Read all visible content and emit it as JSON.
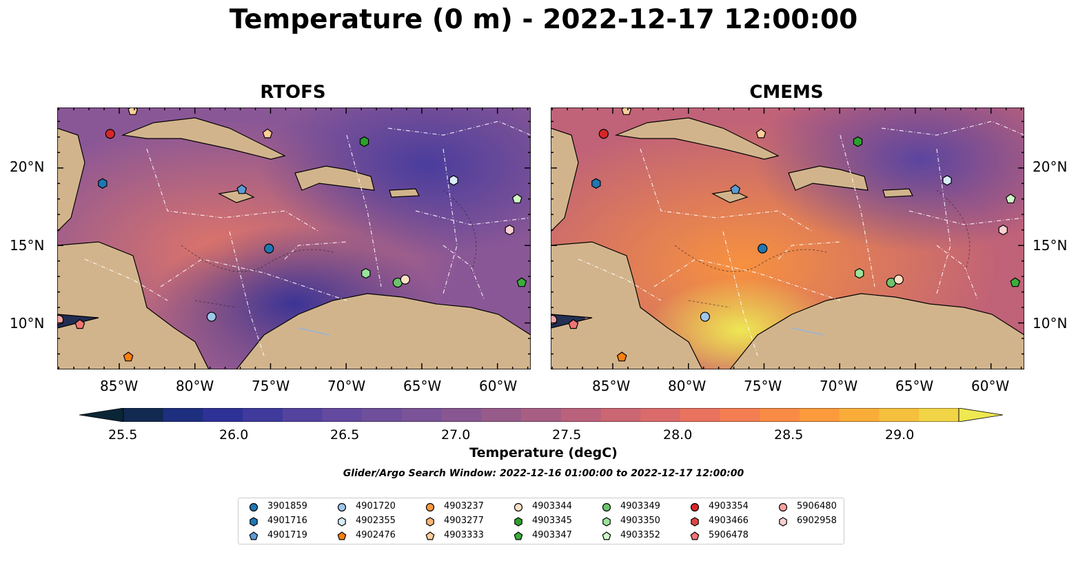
{
  "title": "Temperature (0 m) - 2022-12-17 12:00:00",
  "panels": [
    {
      "title": "RTOFS",
      "accent": "#6a4c95"
    },
    {
      "title": "CMEMS",
      "accent": "#d96a5a"
    }
  ],
  "lon_ticks": [
    "85°W",
    "80°W",
    "75°W",
    "70°W",
    "65°W",
    "60°W"
  ],
  "lat_ticks": [
    "20°N",
    "15°N",
    "10°N"
  ],
  "colorbar": {
    "ticks": [
      "25.5",
      "26.0",
      "26.5",
      "27.0",
      "27.5",
      "28.0",
      "28.5",
      "29.0"
    ],
    "label": "Temperature (degC)",
    "colors": [
      "#0a2536",
      "#122a52",
      "#1d2f7e",
      "#2e3296",
      "#3f3a9c",
      "#54439f",
      "#634aa0",
      "#6f4f9c",
      "#7b5398",
      "#885792",
      "#975b8a",
      "#a85e82",
      "#ba617b",
      "#cb6673",
      "#db6b6a",
      "#e9735e",
      "#f47e52",
      "#fa8b45",
      "#fc9b3c",
      "#f9ad38",
      "#f5c03d",
      "#f2d447",
      "#eee853"
    ]
  },
  "subtitle": "Glider/Argo Search Window: 2022-12-16 01:00:00 to 2022-12-17 12:00:00",
  "legend": [
    {
      "id": "3901859",
      "shape": "circle",
      "color": "#1f77b4"
    },
    {
      "id": "4901716",
      "shape": "hexagon",
      "color": "#1f77b4"
    },
    {
      "id": "4901719",
      "shape": "pentagon",
      "color": "#5b9bd5"
    },
    {
      "id": "4901720",
      "shape": "circle",
      "color": "#9ec7ea"
    },
    {
      "id": "4902355",
      "shape": "hexagon",
      "color": "#d8ecfa"
    },
    {
      "id": "4902476",
      "shape": "pentagon",
      "color": "#ff7f0e"
    },
    {
      "id": "4903237",
      "shape": "circle",
      "color": "#fd9a3c"
    },
    {
      "id": "4903277",
      "shape": "hexagon",
      "color": "#ffb574"
    },
    {
      "id": "4903333",
      "shape": "pentagon",
      "color": "#ffcd9a"
    },
    {
      "id": "4903344",
      "shape": "circle",
      "color": "#fde0c5"
    },
    {
      "id": "4903345",
      "shape": "hexagon",
      "color": "#2ca02c"
    },
    {
      "id": "4903347",
      "shape": "pentagon",
      "color": "#3aae3a"
    },
    {
      "id": "4903349",
      "shape": "circle",
      "color": "#6cc46c"
    },
    {
      "id": "4903350",
      "shape": "hexagon",
      "color": "#9be39b"
    },
    {
      "id": "4903352",
      "shape": "pentagon",
      "color": "#d0f7c8"
    },
    {
      "id": "4903354",
      "shape": "circle",
      "color": "#d62728"
    },
    {
      "id": "4903466",
      "shape": "hexagon",
      "color": "#e04545"
    },
    {
      "id": "5906478",
      "shape": "pentagon",
      "color": "#f07474"
    },
    {
      "id": "5906480",
      "shape": "circle",
      "color": "#f5a3a3"
    },
    {
      "id": "6902958",
      "shape": "hexagon",
      "color": "#fbd0d0"
    }
  ],
  "floats": [
    {
      "id": "4903354",
      "lon": -85.6,
      "lat": 22.2
    },
    {
      "id": "4903333",
      "lon": -84.1,
      "lat": 23.7
    },
    {
      "id": "4901716",
      "lon": -86.1,
      "lat": 19.0
    },
    {
      "id": "4903333",
      "lon": -75.2,
      "lat": 22.2
    },
    {
      "id": "4903345",
      "lon": -68.8,
      "lat": 21.7
    },
    {
      "id": "4901719",
      "lon": -76.9,
      "lat": 18.6
    },
    {
      "id": "4902355",
      "lon": -62.9,
      "lat": 19.2
    },
    {
      "id": "4903352",
      "lon": -58.7,
      "lat": 18.0
    },
    {
      "id": "6902958",
      "lon": -59.2,
      "lat": 16.0
    },
    {
      "id": "3901859",
      "lon": -75.1,
      "lat": 14.8
    },
    {
      "id": "4903350",
      "lon": -68.7,
      "lat": 13.2
    },
    {
      "id": "4903349",
      "lon": -66.6,
      "lat": 12.6
    },
    {
      "id": "4903344",
      "lon": -66.1,
      "lat": 12.8
    },
    {
      "id": "4903347",
      "lon": -58.4,
      "lat": 12.6
    },
    {
      "id": "4901720",
      "lon": -78.9,
      "lat": 10.4
    },
    {
      "id": "5906480",
      "lon": -89.0,
      "lat": 10.2
    },
    {
      "id": "5906478",
      "lon": -87.6,
      "lat": 9.9
    },
    {
      "id": "4902476",
      "lon": -84.4,
      "lat": 7.8
    }
  ]
}
